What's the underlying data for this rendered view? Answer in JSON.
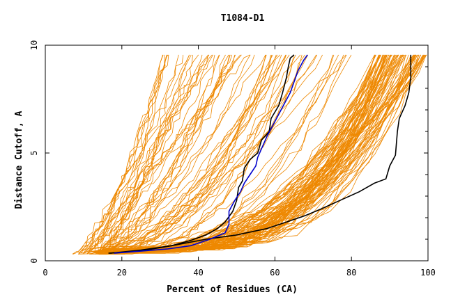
{
  "chart_data": {
    "type": "line",
    "title": "T1084-D1",
    "xlabel": "Percent of Residues (CA)",
    "ylabel": "Distance Cutoff, A",
    "xlim": [
      0,
      100
    ],
    "ylim": [
      0,
      10
    ],
    "x_ticks": [
      0,
      20,
      40,
      60,
      80,
      100
    ],
    "y_ticks": [
      0,
      5,
      10
    ],
    "grid": false,
    "legend": "none",
    "colors": {
      "background": "#ffffff",
      "axes": "#000000",
      "bundle": "#ee8800",
      "highlight_black": "#000000",
      "highlight_blue": "#0000cc"
    },
    "highlight_series": [
      {
        "color": "#000000",
        "points": [
          [
            16.5,
            0.35
          ],
          [
            22,
            0.42
          ],
          [
            28,
            0.55
          ],
          [
            33,
            0.7
          ],
          [
            38,
            0.95
          ],
          [
            42,
            1.2
          ],
          [
            45,
            1.5
          ],
          [
            47,
            1.8
          ],
          [
            49,
            2.3
          ],
          [
            50,
            2.8
          ],
          [
            50.5,
            3.4
          ],
          [
            51.5,
            3.7
          ],
          [
            52,
            4.3
          ],
          [
            53.5,
            4.7
          ],
          [
            55.5,
            5.0
          ],
          [
            56.5,
            5.6
          ],
          [
            58.5,
            6.0
          ],
          [
            59,
            6.6
          ],
          [
            61,
            7.2
          ],
          [
            62,
            7.8
          ],
          [
            63,
            8.5
          ],
          [
            63.5,
            9.0
          ],
          [
            64,
            9.4
          ],
          [
            65,
            9.55
          ]
        ]
      },
      {
        "color": "#000000",
        "points": [
          [
            17,
            0.35
          ],
          [
            25,
            0.5
          ],
          [
            33,
            0.7
          ],
          [
            42,
            1.0
          ],
          [
            50,
            1.2
          ],
          [
            58,
            1.5
          ],
          [
            63,
            1.8
          ],
          [
            68,
            2.1
          ],
          [
            72,
            2.4
          ],
          [
            77,
            2.8
          ],
          [
            82,
            3.2
          ],
          [
            86,
            3.6
          ],
          [
            89,
            3.8
          ],
          [
            90,
            4.4
          ],
          [
            91.5,
            4.9
          ],
          [
            92,
            6.0
          ],
          [
            92.5,
            6.6
          ],
          [
            94,
            7.2
          ],
          [
            95,
            7.8
          ],
          [
            95.5,
            8.5
          ],
          [
            95.5,
            9.55
          ]
        ]
      },
      {
        "color": "#0000cc",
        "points": [
          [
            18,
            0.35
          ],
          [
            25,
            0.45
          ],
          [
            32,
            0.55
          ],
          [
            38,
            0.7
          ],
          [
            43,
            1.0
          ],
          [
            47,
            1.3
          ],
          [
            48,
            1.7
          ],
          [
            48,
            2.3
          ],
          [
            49.5,
            2.8
          ],
          [
            51,
            3.2
          ],
          [
            52,
            3.6
          ],
          [
            53.5,
            4.0
          ],
          [
            55,
            4.4
          ],
          [
            55.5,
            4.8
          ],
          [
            56.5,
            5.2
          ],
          [
            58,
            5.8
          ],
          [
            59.5,
            6.3
          ],
          [
            61,
            6.8
          ],
          [
            62.5,
            7.3
          ],
          [
            64,
            7.8
          ],
          [
            65,
            8.3
          ],
          [
            66,
            8.8
          ],
          [
            67.5,
            9.3
          ],
          [
            68.5,
            9.55
          ]
        ]
      }
    ],
    "bundle_count": 150
  }
}
